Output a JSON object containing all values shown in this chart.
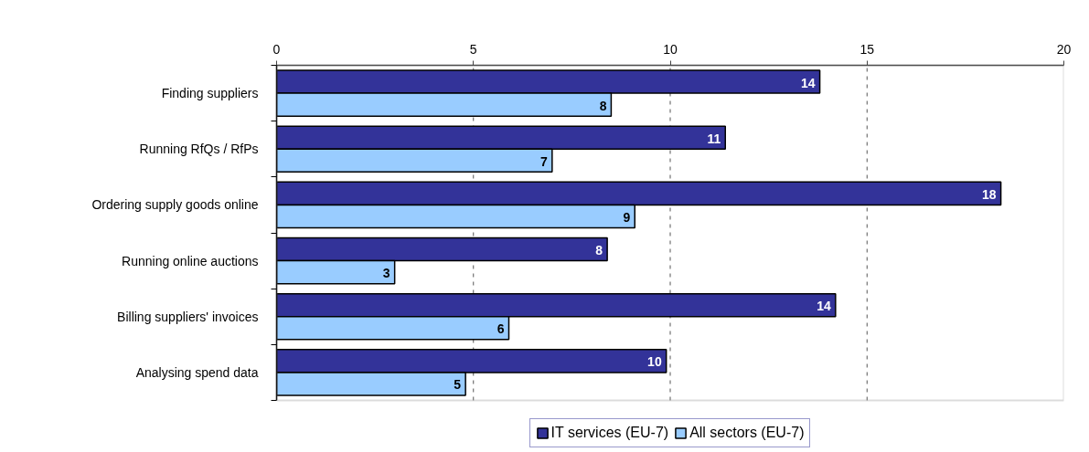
{
  "chart_data": {
    "type": "bar",
    "orientation": "horizontal",
    "categories": [
      "Finding suppliers",
      "Running RfQs / RfPs",
      "Ordering supply goods online",
      "Running online auctions",
      "Billing suppliers' invoices",
      "Analysing spend data"
    ],
    "series": [
      {
        "name": "IT services (EU-7)",
        "color": "#333399",
        "values": [
          13.8,
          11.4,
          18.4,
          8.4,
          14.2,
          9.9
        ],
        "value_labels": [
          "14",
          "11",
          "18",
          "8",
          "14",
          "10"
        ]
      },
      {
        "name": "All sectors (EU-7)",
        "color": "#99ccff",
        "values": [
          8.5,
          7.0,
          9.1,
          3.0,
          5.9,
          4.8
        ],
        "value_labels": [
          "8",
          "7",
          "9",
          "3",
          "6",
          "5"
        ]
      }
    ],
    "xlim": [
      0,
      20
    ],
    "xticks": [
      0,
      5,
      10,
      15,
      20
    ],
    "grid": "x",
    "legend": "bottom"
  }
}
